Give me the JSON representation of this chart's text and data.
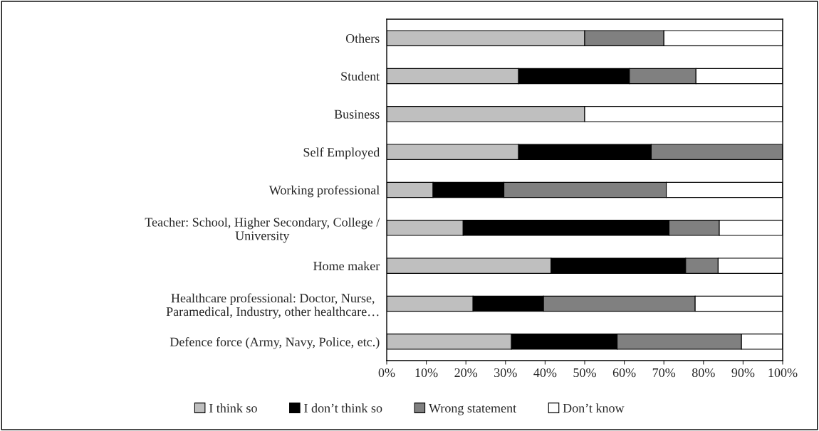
{
  "chart_data": {
    "type": "bar",
    "orientation": "horizontal",
    "stacked": true,
    "categories": [
      "Others",
      "Student",
      "Business",
      "Self Employed",
      "Working professional",
      "Teacher: School, Higher Secondary, College /\nUniversity",
      "Home maker",
      "Healthcare professional: Doctor, Nurse,\nParamedical, Industry, other healthcare…",
      "Defence force (Army, Navy, Police, etc.)"
    ],
    "series": [
      {
        "name": "I think so",
        "color": "#bfbfbf",
        "values": [
          50,
          33.3,
          50,
          33.3,
          11.7,
          19.3,
          41.5,
          21.8,
          31.5
        ]
      },
      {
        "name": "I don’t think so",
        "color": "#000000",
        "values": [
          0,
          28,
          0,
          33.5,
          17.9,
          52,
          34,
          17.8,
          26.7
        ]
      },
      {
        "name": "Wrong statement",
        "color": "#808080",
        "values": [
          20,
          16.8,
          0,
          33.2,
          41,
          12.7,
          8.2,
          38.3,
          31.4
        ]
      },
      {
        "name": "Don’t know",
        "color": "#ffffff",
        "values": [
          30,
          21.9,
          50,
          0,
          29.4,
          16,
          16.3,
          22.1,
          10.4
        ]
      }
    ],
    "xlim": [
      0,
      100
    ],
    "xticks": [
      {
        "value": 0,
        "label": "0%"
      },
      {
        "value": 10,
        "label": "10%"
      },
      {
        "value": 20,
        "label": "20%"
      },
      {
        "value": 30,
        "label": "30%"
      },
      {
        "value": 40,
        "label": "40%"
      },
      {
        "value": 50,
        "label": "50%"
      },
      {
        "value": 60,
        "label": "60%"
      },
      {
        "value": 70,
        "label": "70%"
      },
      {
        "value": 80,
        "label": "80%"
      },
      {
        "value": 90,
        "label": "90%"
      },
      {
        "value": 100,
        "label": "100%"
      }
    ],
    "grid": false,
    "legend": "bottom"
  }
}
